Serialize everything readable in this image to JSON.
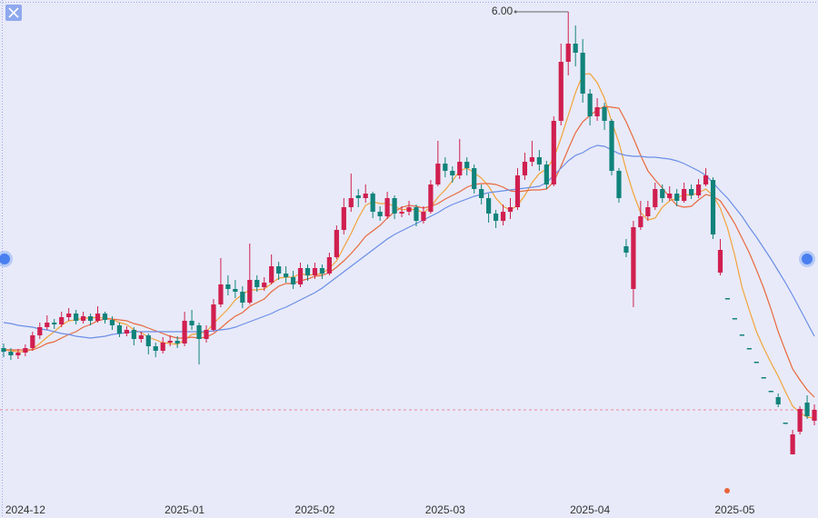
{
  "chart_data": {
    "type": "candlestick",
    "categories": [
      null,
      null,
      null,
      "2024-12",
      null,
      null,
      null,
      null,
      null,
      null,
      null,
      null,
      null,
      null,
      null,
      null,
      null,
      null,
      null,
      null,
      null,
      null,
      null,
      null,
      null,
      "2025-01",
      null,
      null,
      null,
      null,
      null,
      null,
      null,
      null,
      null,
      null,
      null,
      null,
      null,
      null,
      null,
      null,
      null,
      "2025-02",
      null,
      null,
      null,
      null,
      null,
      null,
      null,
      null,
      null,
      null,
      null,
      null,
      null,
      null,
      null,
      null,
      null,
      "2025-03",
      null,
      null,
      null,
      null,
      null,
      null,
      null,
      null,
      null,
      null,
      null,
      null,
      null,
      null,
      null,
      null,
      null,
      null,
      null,
      "2025-04",
      null,
      null,
      null,
      null,
      null,
      null,
      null,
      null,
      null,
      null,
      null,
      null,
      null,
      null,
      null,
      null,
      null,
      null,
      null,
      "2025-05",
      null,
      null,
      null,
      null,
      null,
      null,
      null,
      null,
      null,
      null,
      null
    ],
    "open": [
      2.3,
      2.26,
      2.22,
      2.25,
      2.3,
      2.44,
      2.53,
      2.58,
      2.56,
      2.64,
      2.68,
      2.6,
      2.65,
      2.6,
      2.68,
      2.61,
      2.55,
      2.46,
      2.5,
      2.4,
      2.44,
      2.32,
      2.27,
      2.36,
      2.38,
      2.35,
      2.6,
      2.55,
      2.4,
      2.5,
      2.78,
      3.0,
      2.95,
      2.92,
      2.8,
      3.05,
      2.97,
      3.02,
      3.2,
      3.12,
      3.08,
      3.0,
      3.18,
      3.1,
      3.18,
      3.12,
      3.3,
      3.6,
      3.85,
      3.98,
      3.95,
      4.0,
      3.8,
      3.75,
      3.95,
      3.78,
      3.8,
      3.85,
      3.7,
      3.8,
      4.1,
      4.33,
      4.25,
      4.2,
      4.35,
      4.28,
      4.05,
      3.95,
      3.78,
      3.7,
      3.8,
      3.85,
      4.2,
      4.35,
      4.4,
      4.32,
      4.1,
      4.8,
      5.45,
      5.65,
      5.55,
      5.1,
      4.85,
      4.95,
      4.8,
      4.25,
      3.42,
      2.95,
      3.63,
      3.75,
      3.85,
      4.05,
      3.95,
      4.0,
      3.92,
      4.05,
      3.98,
      4.1,
      4.15,
      3.13,
      2.85,
      2.63,
      2.45,
      2.3,
      2.15,
      1.98,
      1.83,
      1.76,
      1.48,
      1.13,
      1.38,
      1.7,
      1.5
    ],
    "high": [
      2.35,
      2.3,
      2.29,
      2.34,
      2.48,
      2.58,
      2.66,
      2.62,
      2.7,
      2.74,
      2.72,
      2.7,
      2.68,
      2.76,
      2.7,
      2.65,
      2.58,
      2.54,
      2.53,
      2.48,
      2.46,
      2.36,
      2.42,
      2.44,
      2.43,
      2.7,
      2.72,
      2.58,
      2.55,
      2.84,
      3.29,
      3.1,
      3.05,
      2.98,
      3.45,
      3.1,
      3.08,
      3.33,
      3.25,
      3.2,
      3.15,
      3.24,
      3.22,
      3.24,
      3.22,
      3.35,
      3.65,
      3.95,
      4.22,
      4.05,
      4.1,
      4.02,
      3.86,
      4.02,
      3.98,
      3.86,
      3.92,
      3.88,
      3.86,
      4.15,
      4.58,
      4.4,
      4.3,
      4.6,
      4.4,
      4.32,
      4.1,
      4.0,
      3.82,
      3.88,
      3.95,
      4.28,
      4.45,
      4.58,
      4.48,
      4.36,
      4.85,
      5.65,
      6.0,
      5.85,
      5.7,
      5.15,
      5.05,
      5.0,
      4.82,
      4.28,
      3.5,
      3.7,
      3.92,
      3.92,
      4.12,
      4.1,
      4.08,
      4.05,
      4.12,
      4.1,
      4.16,
      4.28,
      4.18,
      3.5,
      2.85,
      2.63,
      2.45,
      2.3,
      2.15,
      1.98,
      1.83,
      1.8,
      1.48,
      1.4,
      1.66,
      1.78,
      1.68
    ],
    "low": [
      2.2,
      2.17,
      2.18,
      2.21,
      2.27,
      2.4,
      2.5,
      2.51,
      2.53,
      2.6,
      2.56,
      2.57,
      2.55,
      2.58,
      2.57,
      2.5,
      2.42,
      2.43,
      2.33,
      2.36,
      2.23,
      2.2,
      2.24,
      2.32,
      2.3,
      2.32,
      2.5,
      2.12,
      2.36,
      2.48,
      2.75,
      2.88,
      2.85,
      2.74,
      2.78,
      2.92,
      2.93,
      3.0,
      3.05,
      3.02,
      2.95,
      2.97,
      3.04,
      3.06,
      3.06,
      3.1,
      3.28,
      3.55,
      3.8,
      3.85,
      3.9,
      3.73,
      3.7,
      3.72,
      3.72,
      3.74,
      3.76,
      3.64,
      3.67,
      3.78,
      4.08,
      4.18,
      4.12,
      4.16,
      4.2,
      4.0,
      3.88,
      3.68,
      3.62,
      3.65,
      3.72,
      3.82,
      4.15,
      4.3,
      4.25,
      4.05,
      4.08,
      4.75,
      5.3,
      5.4,
      5.0,
      4.75,
      4.8,
      4.7,
      4.2,
      3.9,
      3.3,
      2.75,
      3.6,
      3.7,
      3.82,
      3.9,
      3.92,
      3.86,
      3.9,
      3.94,
      3.95,
      4.08,
      3.5,
      3.1,
      2.85,
      2.63,
      2.45,
      2.3,
      2.15,
      1.98,
      1.83,
      1.65,
      1.48,
      1.13,
      1.35,
      1.52,
      1.45
    ],
    "close": [
      2.26,
      2.22,
      2.25,
      2.3,
      2.44,
      2.53,
      2.58,
      2.56,
      2.64,
      2.68,
      2.6,
      2.65,
      2.6,
      2.68,
      2.61,
      2.55,
      2.46,
      2.5,
      2.4,
      2.44,
      2.32,
      2.27,
      2.36,
      2.38,
      2.35,
      2.6,
      2.55,
      2.4,
      2.5,
      2.78,
      3.0,
      2.95,
      2.92,
      2.8,
      3.05,
      2.97,
      3.02,
      3.2,
      3.12,
      3.08,
      3.0,
      3.18,
      3.1,
      3.18,
      3.12,
      3.3,
      3.6,
      3.85,
      3.95,
      3.95,
      4.0,
      3.8,
      3.75,
      3.95,
      3.78,
      3.8,
      3.85,
      3.7,
      3.8,
      4.1,
      4.33,
      4.25,
      4.2,
      4.35,
      4.28,
      4.05,
      3.95,
      3.78,
      3.7,
      3.8,
      3.85,
      4.2,
      4.35,
      4.4,
      4.32,
      4.1,
      4.8,
      5.45,
      5.65,
      5.55,
      5.1,
      4.85,
      4.95,
      4.8,
      4.25,
      3.95,
      3.35,
      3.63,
      3.75,
      3.85,
      4.05,
      3.95,
      4.0,
      3.92,
      4.05,
      3.98,
      4.1,
      4.2,
      3.55,
      3.38,
      2.85,
      2.63,
      2.45,
      2.3,
      2.15,
      1.98,
      1.83,
      1.68,
      1.48,
      1.35,
      1.63,
      1.55,
      1.62
    ],
    "lines": [
      {
        "color": "#f2a33a",
        "values": [
          2.28,
          2.27,
          2.26,
          2.26,
          2.29,
          2.35,
          2.42,
          2.48,
          2.55,
          2.6,
          2.61,
          2.63,
          2.63,
          2.64,
          2.63,
          2.62,
          2.58,
          2.56,
          2.5,
          2.47,
          2.42,
          2.39,
          2.36,
          2.35,
          2.34,
          2.39,
          2.45,
          2.46,
          2.48,
          2.57,
          2.65,
          2.73,
          2.83,
          2.89,
          2.94,
          2.94,
          2.95,
          3.01,
          3.07,
          3.08,
          3.08,
          3.12,
          3.1,
          3.11,
          3.12,
          3.18,
          3.26,
          3.41,
          3.56,
          3.73,
          3.87,
          3.91,
          3.89,
          3.89,
          3.86,
          3.82,
          3.83,
          3.82,
          3.79,
          3.85,
          3.96,
          4.04,
          4.14,
          4.25,
          4.28,
          4.23,
          4.17,
          4.08,
          3.95,
          3.86,
          3.82,
          3.87,
          3.98,
          4.12,
          4.22,
          4.27,
          4.39,
          4.61,
          4.86,
          5.11,
          5.31,
          5.32,
          5.22,
          5.05,
          4.79,
          4.56,
          4.26,
          4.0,
          3.79,
          3.71,
          3.73,
          3.85,
          3.92,
          3.95,
          3.99,
          3.98,
          4.01,
          4.05,
          3.98,
          3.84,
          3.62,
          3.32,
          2.97,
          2.72,
          2.48,
          2.3,
          2.14,
          1.99,
          1.82,
          1.66,
          1.59,
          1.54,
          1.53
        ]
      },
      {
        "color": "#e8693e",
        "values": [
          2.28,
          2.28,
          2.28,
          2.28,
          2.28,
          2.31,
          2.35,
          2.37,
          2.41,
          2.45,
          2.48,
          2.53,
          2.56,
          2.6,
          2.62,
          2.62,
          2.61,
          2.6,
          2.57,
          2.55,
          2.52,
          2.49,
          2.46,
          2.43,
          2.41,
          2.41,
          2.42,
          2.41,
          2.42,
          2.46,
          2.52,
          2.59,
          2.65,
          2.69,
          2.76,
          2.8,
          2.84,
          2.92,
          2.98,
          3.01,
          3.01,
          3.04,
          3.06,
          3.09,
          3.1,
          3.13,
          3.19,
          3.26,
          3.34,
          3.43,
          3.53,
          3.59,
          3.65,
          3.73,
          3.8,
          3.85,
          3.87,
          3.86,
          3.84,
          3.86,
          3.89,
          3.94,
          3.98,
          4.02,
          4.07,
          4.1,
          4.11,
          4.11,
          4.1,
          4.07,
          4.03,
          4.02,
          4.03,
          4.04,
          4.04,
          4.05,
          4.13,
          4.3,
          4.49,
          4.67,
          4.79,
          4.86,
          4.92,
          4.96,
          4.95,
          4.94,
          4.79,
          4.61,
          4.42,
          4.25,
          4.15,
          4.06,
          3.96,
          3.87,
          3.85,
          3.86,
          3.93,
          3.99,
          3.97,
          3.92,
          3.8,
          3.67,
          3.51,
          3.35,
          3.16,
          2.96,
          2.73,
          2.48,
          2.27,
          2.07,
          1.95,
          1.84,
          1.76
        ]
      },
      {
        "color": "#6b8fe6",
        "values": [
          2.58,
          2.57,
          2.55,
          2.54,
          2.53,
          2.51,
          2.5,
          2.48,
          2.46,
          2.45,
          2.43,
          2.42,
          2.41,
          2.42,
          2.43,
          2.45,
          2.46,
          2.47,
          2.48,
          2.48,
          2.48,
          2.48,
          2.48,
          2.48,
          2.48,
          2.48,
          2.48,
          2.48,
          2.48,
          2.49,
          2.5,
          2.51,
          2.53,
          2.56,
          2.59,
          2.62,
          2.65,
          2.68,
          2.72,
          2.75,
          2.79,
          2.83,
          2.87,
          2.91,
          2.96,
          3.02,
          3.08,
          3.14,
          3.2,
          3.26,
          3.32,
          3.38,
          3.44,
          3.5,
          3.55,
          3.59,
          3.63,
          3.67,
          3.71,
          3.75,
          3.79,
          3.84,
          3.88,
          3.91,
          3.94,
          3.97,
          3.99,
          4.01,
          4.02,
          4.03,
          4.04,
          4.05,
          4.06,
          4.07,
          4.08,
          4.12,
          4.2,
          4.28,
          4.36,
          4.42,
          4.45,
          4.5,
          4.53,
          4.52,
          4.48,
          4.44,
          4.42,
          4.41,
          4.41,
          4.4,
          4.4,
          4.39,
          4.38,
          4.36,
          4.33,
          4.29,
          4.25,
          4.2,
          4.12,
          4.03,
          3.95,
          3.85,
          3.75,
          3.63,
          3.52,
          3.4,
          3.28,
          3.15,
          3.02,
          2.88,
          2.73,
          2.58,
          2.43
        ]
      }
    ],
    "up_color": "#d01f4f",
    "down_color": "#11837b",
    "ylim": [
      0.93,
      6.13
    ],
    "annotations": [
      {
        "value": 6,
        "label": "6.00"
      }
    ]
  }
}
